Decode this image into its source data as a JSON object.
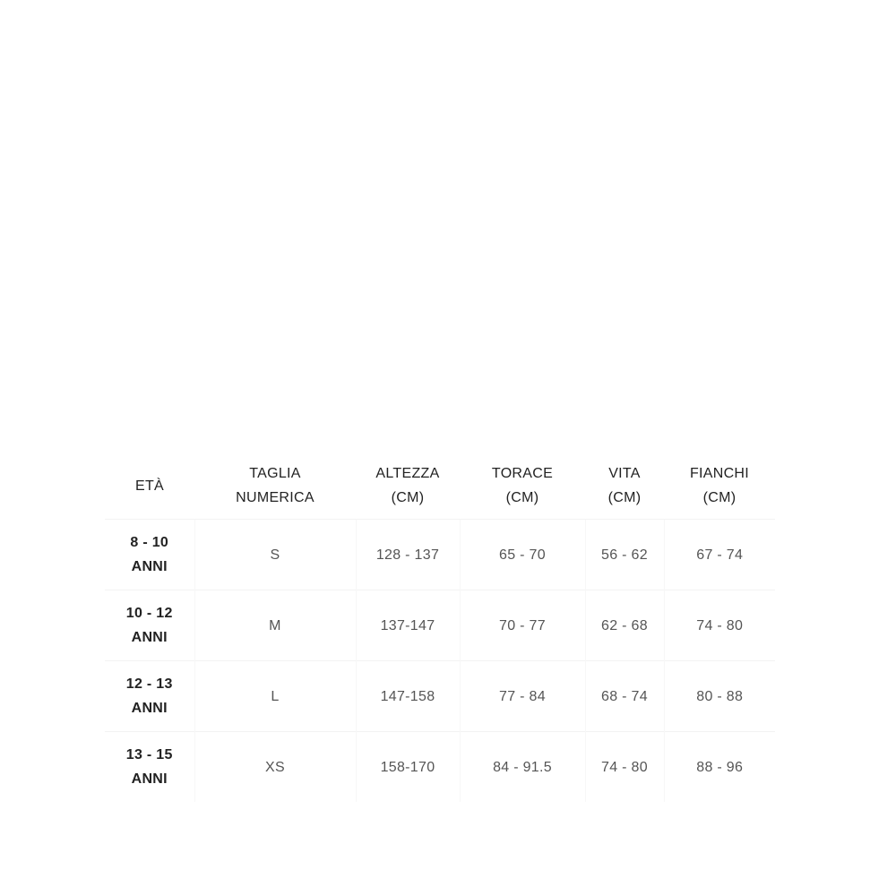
{
  "table": {
    "headers": [
      [
        "ETÀ",
        ""
      ],
      [
        "TAGLIA",
        "NUMERICA"
      ],
      [
        "ALTEZZA",
        "(CM)"
      ],
      [
        "TORACE",
        "(CM)"
      ],
      [
        "VITA",
        "(CM)"
      ],
      [
        "FIANCHI",
        "(CM)"
      ]
    ],
    "rows": [
      {
        "age": [
          "8 - 10",
          "ANNI"
        ],
        "size": "S",
        "height": "128 - 137",
        "chest": "65 - 70",
        "waist": "56 - 62",
        "hips": "67 - 74"
      },
      {
        "age": [
          "10 - 12",
          "ANNI"
        ],
        "size": "M",
        "height": "137-147",
        "chest": "70 - 77",
        "waist": "62 - 68",
        "hips": "74 - 80"
      },
      {
        "age": [
          "12 - 13",
          "ANNI"
        ],
        "size": "L",
        "height": "147-158",
        "chest": "77 - 84",
        "waist": "68 - 74",
        "hips": "80 - 88"
      },
      {
        "age": [
          "13 - 15",
          "ANNI"
        ],
        "size": "XS",
        "height": "158-170",
        "chest": "84 - 91.5",
        "waist": "74 - 80",
        "hips": "88 - 96"
      }
    ]
  }
}
